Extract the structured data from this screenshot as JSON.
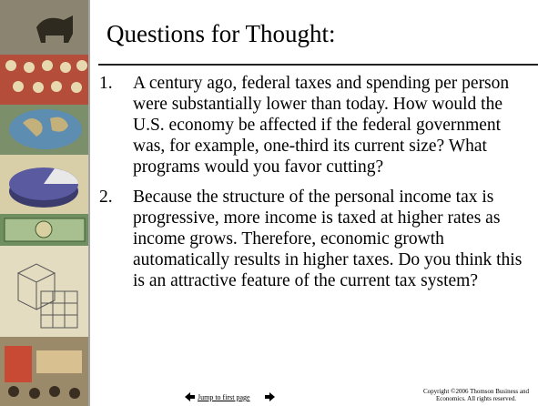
{
  "slide": {
    "title": "Questions for Thought:",
    "items": [
      {
        "number": "1.",
        "text": "A century ago, federal taxes and spending per person were substantially lower than today. How would the U.S. economy be affected if the federal government was, for example, one-third its current size? What programs would you favor cutting?"
      },
      {
        "number": "2.",
        "text": "Because the structure of the personal income tax is progressive, more income is taxed at higher rates as income grows. Therefore, economic growth automatically results in higher taxes.  Do you think this is an attractive feature of the current tax system?"
      }
    ],
    "nav_label": "Jump to first page",
    "copyright": [
      "Copyright ©2006  Thomson Business and",
      "Economics. All rights reserved."
    ]
  }
}
